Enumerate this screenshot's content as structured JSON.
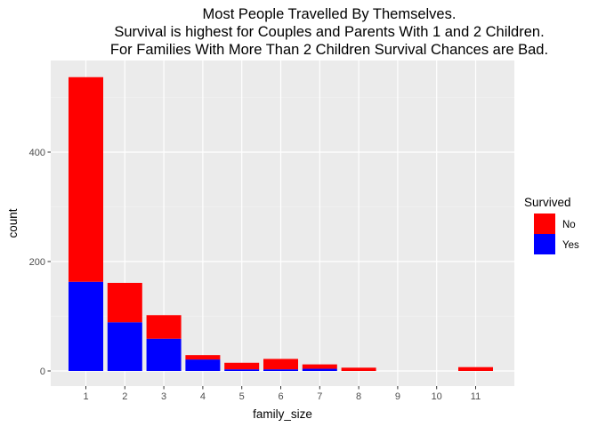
{
  "chart_data": {
    "type": "bar",
    "stacked": true,
    "title_lines": [
      "Most People Travelled By Themselves.",
      "Survival is highest for Couples and Parents With 1 and 2 Children.",
      "For Families With More Than 2 Children Survival Chances are Bad."
    ],
    "xlabel": "family_size",
    "ylabel": "count",
    "categories": [
      "1",
      "2",
      "3",
      "4",
      "5",
      "6",
      "7",
      "8",
      "9",
      "10",
      "11"
    ],
    "series": [
      {
        "name": "Yes",
        "color": "#0000FF",
        "values": [
          163,
          89,
          59,
          21,
          3,
          3,
          4,
          0,
          0,
          0,
          0
        ]
      },
      {
        "name": "No",
        "color": "#FF0000",
        "values": [
          374,
          72,
          43,
          8,
          12,
          19,
          8,
          6,
          0,
          0,
          7
        ]
      }
    ],
    "ylim": [
      0,
      560
    ],
    "yticks": [
      0,
      200,
      400
    ],
    "grid": true,
    "panel_background": "#EBEBEB",
    "legend": {
      "title": "Survived",
      "position": "right",
      "entries": [
        {
          "label": "No",
          "color": "#FF0000"
        },
        {
          "label": "Yes",
          "color": "#0000FF"
        }
      ]
    }
  }
}
